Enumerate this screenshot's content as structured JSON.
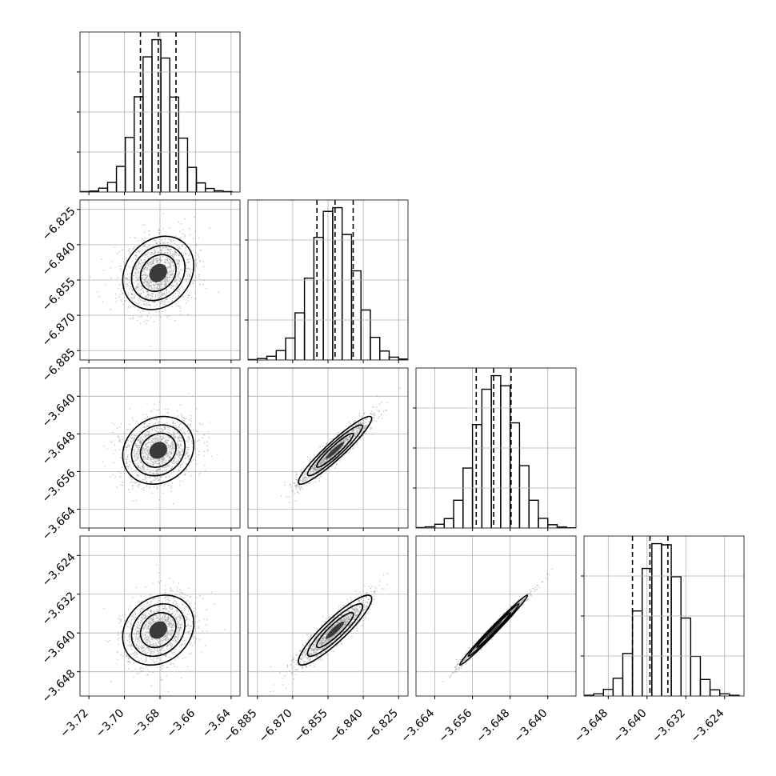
{
  "chart_data": {
    "type": "corner",
    "grid": true,
    "colors": {
      "line": "#000000",
      "grid": "#b0b0b0",
      "frame": "#333333",
      "points": "#9a9a9a"
    },
    "parameters": [
      {
        "index": 0,
        "range": [
          -3.725,
          -3.635
        ],
        "ticks": [
          -3.72,
          -3.7,
          -3.68,
          -3.66,
          -3.64
        ],
        "tick_labels": [
          "−3.72",
          "−3.70",
          "−3.68",
          "−3.66",
          "−3.64"
        ],
        "mean": -3.681,
        "sigma": 0.01,
        "quantiles": [
          -3.691,
          -3.681,
          -3.671
        ]
      },
      {
        "index": 1,
        "range": [
          -6.889,
          -6.821
        ],
        "ticks": [
          -6.885,
          -6.87,
          -6.855,
          -6.84,
          -6.825
        ],
        "tick_labels": [
          "−6.885",
          "−6.870",
          "−6.855",
          "−6.840",
          "−6.825"
        ],
        "mean": -6.852,
        "sigma": 0.0078,
        "quantiles": [
          -6.8597,
          -6.852,
          -6.8443
        ]
      },
      {
        "index": 2,
        "range": [
          -3.668,
          -3.634
        ],
        "ticks": [
          -3.664,
          -3.656,
          -3.648,
          -3.64
        ],
        "tick_labels": [
          "−3.664",
          "−3.656",
          "−3.648",
          "−3.640"
        ],
        "mean": -3.6515,
        "sigma": 0.0036,
        "quantiles": [
          -3.6552,
          -3.6515,
          -3.6478
        ]
      },
      {
        "index": 3,
        "range": [
          -3.653,
          -3.62
        ],
        "ticks": [
          -3.648,
          -3.64,
          -3.632,
          -3.624
        ],
        "tick_labels": [
          "−3.648",
          "−3.640",
          "−3.632",
          "−3.624"
        ],
        "mean": -3.6394,
        "sigma": 0.0036,
        "quantiles": [
          -3.643,
          -3.6394,
          -3.6357
        ]
      }
    ],
    "correlations": {
      "1-0": 0.2,
      "2-0": 0.15,
      "3-0": 0.2,
      "2-1": 0.94,
      "3-1": 0.9,
      "3-2": 0.99
    },
    "histograms": [
      {
        "bin_centers": [
          -3.722,
          -3.717,
          -3.712,
          -3.707,
          -3.702,
          -3.697,
          -3.692,
          -3.687,
          -3.682,
          -3.677,
          -3.672,
          -3.667,
          -3.662,
          -3.657,
          -3.652,
          -3.647,
          -3.642
        ],
        "counts": [
          2,
          4,
          16,
          40,
          107,
          228,
          398,
          565,
          637,
          560,
          397,
          225,
          103,
          38,
          15,
          5,
          2
        ]
      },
      {
        "bin_centers": [
          -6.887,
          -6.883,
          -6.879,
          -6.875,
          -6.871,
          -6.867,
          -6.863,
          -6.859,
          -6.855,
          -6.851,
          -6.847,
          -6.843,
          -6.839,
          -6.835,
          -6.831,
          -6.827,
          -6.823
        ],
        "counts": [
          2,
          6,
          16,
          40,
          93,
          200,
          347,
          520,
          630,
          646,
          532,
          378,
          212,
          96,
          38,
          12,
          4
        ]
      },
      {
        "bin_centers": [
          -3.667,
          -3.665,
          -3.663,
          -3.661,
          -3.659,
          -3.657,
          -3.655,
          -3.653,
          -3.651,
          -3.649,
          -3.647,
          -3.645,
          -3.643,
          -3.641,
          -3.639,
          -3.637,
          -3.635
        ],
        "counts": [
          2,
          5,
          16,
          40,
          118,
          255,
          440,
          590,
          648,
          605,
          447,
          265,
          118,
          41,
          14,
          4,
          1
        ]
      },
      {
        "bin_centers": [
          -3.652,
          -3.65,
          -3.648,
          -3.646,
          -3.644,
          -3.642,
          -3.64,
          -3.638,
          -3.636,
          -3.634,
          -3.632,
          -3.63,
          -3.628,
          -3.626,
          -3.624,
          -3.622
        ],
        "counts": [
          3,
          9,
          28,
          75,
          180,
          360,
          540,
          645,
          640,
          505,
          330,
          168,
          70,
          26,
          9,
          3
        ]
      }
    ]
  }
}
